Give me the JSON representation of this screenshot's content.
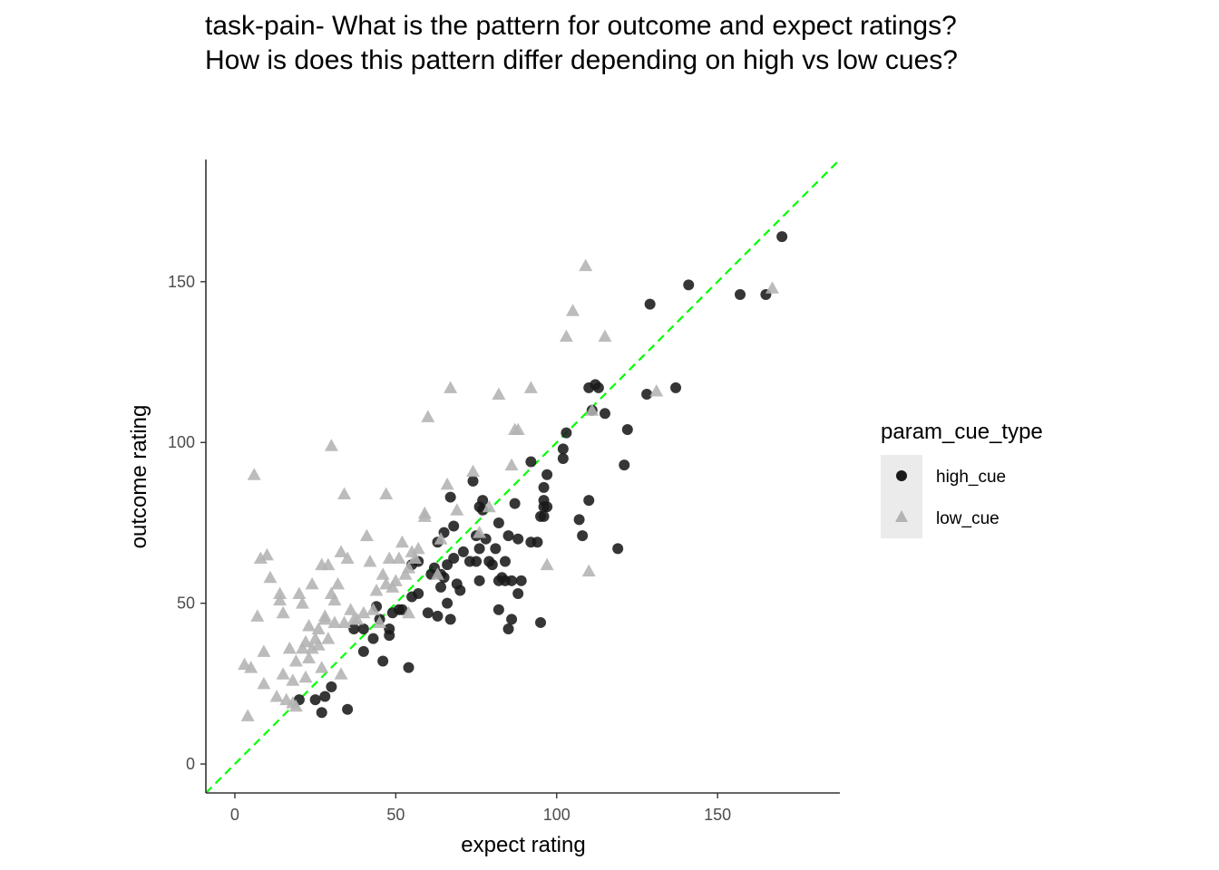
{
  "chart_data": {
    "type": "scatter",
    "title_lines": [
      "task-pain- What is the pattern for outcome and expect ratings?",
      "How is does this pattern differ depending on high vs low cues?"
    ],
    "xlabel": "expect rating",
    "ylabel": "outcome rating",
    "xlim": [
      -9,
      188
    ],
    "ylim": [
      -9,
      188
    ],
    "x_ticks": [
      0,
      50,
      100,
      150
    ],
    "y_ticks": [
      0,
      50,
      100,
      150
    ],
    "grid": false,
    "legend": {
      "title": "param_cue_type",
      "placement": "right",
      "entries": [
        "high_cue",
        "low_cue"
      ]
    },
    "reference_line": {
      "type": "identity",
      "slope": 1,
      "intercept": 0,
      "color": "#00ff00",
      "style": "dashed"
    },
    "colors": {
      "high_cue": "#1a1a1a",
      "low_cue": "#b3b3b3",
      "legend_key_bg": "#ebebeb",
      "axis": "#333333"
    },
    "series": [
      {
        "name": "high_cue",
        "marker": "circle",
        "points": [
          [
            20,
            20
          ],
          [
            25,
            20
          ],
          [
            27,
            16
          ],
          [
            28,
            21
          ],
          [
            30,
            24
          ],
          [
            35,
            17
          ],
          [
            37,
            42
          ],
          [
            40,
            42
          ],
          [
            40,
            35
          ],
          [
            43,
            39
          ],
          [
            44,
            49
          ],
          [
            45,
            45
          ],
          [
            46,
            32
          ],
          [
            48,
            42
          ],
          [
            48,
            40
          ],
          [
            49,
            47
          ],
          [
            51,
            48
          ],
          [
            52,
            48
          ],
          [
            54,
            30
          ],
          [
            55,
            62
          ],
          [
            55,
            52
          ],
          [
            57,
            53
          ],
          [
            57,
            63
          ],
          [
            60,
            47
          ],
          [
            61,
            59
          ],
          [
            62,
            61
          ],
          [
            63,
            46
          ],
          [
            63,
            69
          ],
          [
            64,
            55
          ],
          [
            64,
            59
          ],
          [
            65,
            58
          ],
          [
            65,
            72
          ],
          [
            66,
            50
          ],
          [
            66,
            62
          ],
          [
            67,
            45
          ],
          [
            67,
            83
          ],
          [
            68,
            64
          ],
          [
            68,
            74
          ],
          [
            69,
            56
          ],
          [
            70,
            54
          ],
          [
            71,
            66
          ],
          [
            73,
            63
          ],
          [
            74,
            88
          ],
          [
            75,
            63
          ],
          [
            75,
            71
          ],
          [
            76,
            80
          ],
          [
            76,
            67
          ],
          [
            76,
            57
          ],
          [
            77,
            82
          ],
          [
            77,
            79
          ],
          [
            78,
            70
          ],
          [
            79,
            63
          ],
          [
            80,
            62
          ],
          [
            81,
            67
          ],
          [
            82,
            57
          ],
          [
            82,
            48
          ],
          [
            82,
            75
          ],
          [
            83,
            58
          ],
          [
            84,
            63
          ],
          [
            84,
            57
          ],
          [
            85,
            71
          ],
          [
            85,
            42
          ],
          [
            86,
            45
          ],
          [
            86,
            57
          ],
          [
            87,
            81
          ],
          [
            88,
            70
          ],
          [
            88,
            53
          ],
          [
            89,
            57
          ],
          [
            92,
            94
          ],
          [
            92,
            69
          ],
          [
            94,
            69
          ],
          [
            95,
            77
          ],
          [
            95,
            44
          ],
          [
            96,
            82
          ],
          [
            96,
            80
          ],
          [
            96,
            86
          ],
          [
            96,
            77
          ],
          [
            97,
            80
          ],
          [
            97,
            90
          ],
          [
            102,
            98
          ],
          [
            102,
            95
          ],
          [
            103,
            103
          ],
          [
            107,
            76
          ],
          [
            108,
            71
          ],
          [
            110,
            82
          ],
          [
            110,
            117
          ],
          [
            111,
            110
          ],
          [
            112,
            118
          ],
          [
            113,
            117
          ],
          [
            115,
            109
          ],
          [
            119,
            67
          ],
          [
            121,
            93
          ],
          [
            122,
            104
          ],
          [
            128,
            115
          ],
          [
            129,
            143
          ],
          [
            137,
            117
          ],
          [
            141,
            149
          ],
          [
            157,
            146
          ],
          [
            165,
            146
          ],
          [
            170,
            164
          ]
        ]
      },
      {
        "name": "low_cue",
        "marker": "triangle",
        "points": [
          [
            3,
            31
          ],
          [
            4,
            15
          ],
          [
            5,
            30
          ],
          [
            6,
            90
          ],
          [
            7,
            46
          ],
          [
            8,
            64
          ],
          [
            9,
            35
          ],
          [
            9,
            25
          ],
          [
            10,
            65
          ],
          [
            11,
            58
          ],
          [
            13,
            21
          ],
          [
            14,
            53
          ],
          [
            14,
            51
          ],
          [
            15,
            47
          ],
          [
            15,
            28
          ],
          [
            16,
            20
          ],
          [
            17,
            36
          ],
          [
            18,
            26
          ],
          [
            18,
            19
          ],
          [
            19,
            32
          ],
          [
            19,
            18
          ],
          [
            20,
            53
          ],
          [
            21,
            36
          ],
          [
            21,
            50
          ],
          [
            22,
            27
          ],
          [
            22,
            38
          ],
          [
            23,
            43
          ],
          [
            23,
            33
          ],
          [
            24,
            56
          ],
          [
            24,
            36
          ],
          [
            25,
            39
          ],
          [
            26,
            37
          ],
          [
            26,
            42
          ],
          [
            27,
            30
          ],
          [
            27,
            62
          ],
          [
            28,
            46
          ],
          [
            28,
            45
          ],
          [
            29,
            62
          ],
          [
            29,
            39
          ],
          [
            30,
            99
          ],
          [
            30,
            53
          ],
          [
            31,
            51
          ],
          [
            31,
            44
          ],
          [
            32,
            56
          ],
          [
            33,
            28
          ],
          [
            33,
            66
          ],
          [
            34,
            84
          ],
          [
            34,
            44
          ],
          [
            35,
            64
          ],
          [
            36,
            48
          ],
          [
            37,
            45
          ],
          [
            38,
            45
          ],
          [
            40,
            47
          ],
          [
            41,
            71
          ],
          [
            42,
            63
          ],
          [
            43,
            48
          ],
          [
            44,
            54
          ],
          [
            45,
            44
          ],
          [
            46,
            59
          ],
          [
            47,
            56
          ],
          [
            47,
            84
          ],
          [
            48,
            64
          ],
          [
            49,
            55
          ],
          [
            50,
            57
          ],
          [
            51,
            64
          ],
          [
            52,
            69
          ],
          [
            53,
            59
          ],
          [
            54,
            61
          ],
          [
            54,
            47
          ],
          [
            55,
            66
          ],
          [
            56,
            64
          ],
          [
            57,
            67
          ],
          [
            59,
            78
          ],
          [
            59,
            77
          ],
          [
            60,
            108
          ],
          [
            63,
            59
          ],
          [
            64,
            70
          ],
          [
            66,
            87
          ],
          [
            67,
            117
          ],
          [
            69,
            79
          ],
          [
            74,
            91
          ],
          [
            76,
            72
          ],
          [
            79,
            80
          ],
          [
            82,
            115
          ],
          [
            86,
            93
          ],
          [
            87,
            104
          ],
          [
            88,
            104
          ],
          [
            92,
            117
          ],
          [
            97,
            62
          ],
          [
            103,
            133
          ],
          [
            105,
            141
          ],
          [
            109,
            155
          ],
          [
            110,
            60
          ],
          [
            111,
            110
          ],
          [
            115,
            133
          ],
          [
            131,
            116
          ],
          [
            167,
            148
          ]
        ]
      }
    ]
  }
}
